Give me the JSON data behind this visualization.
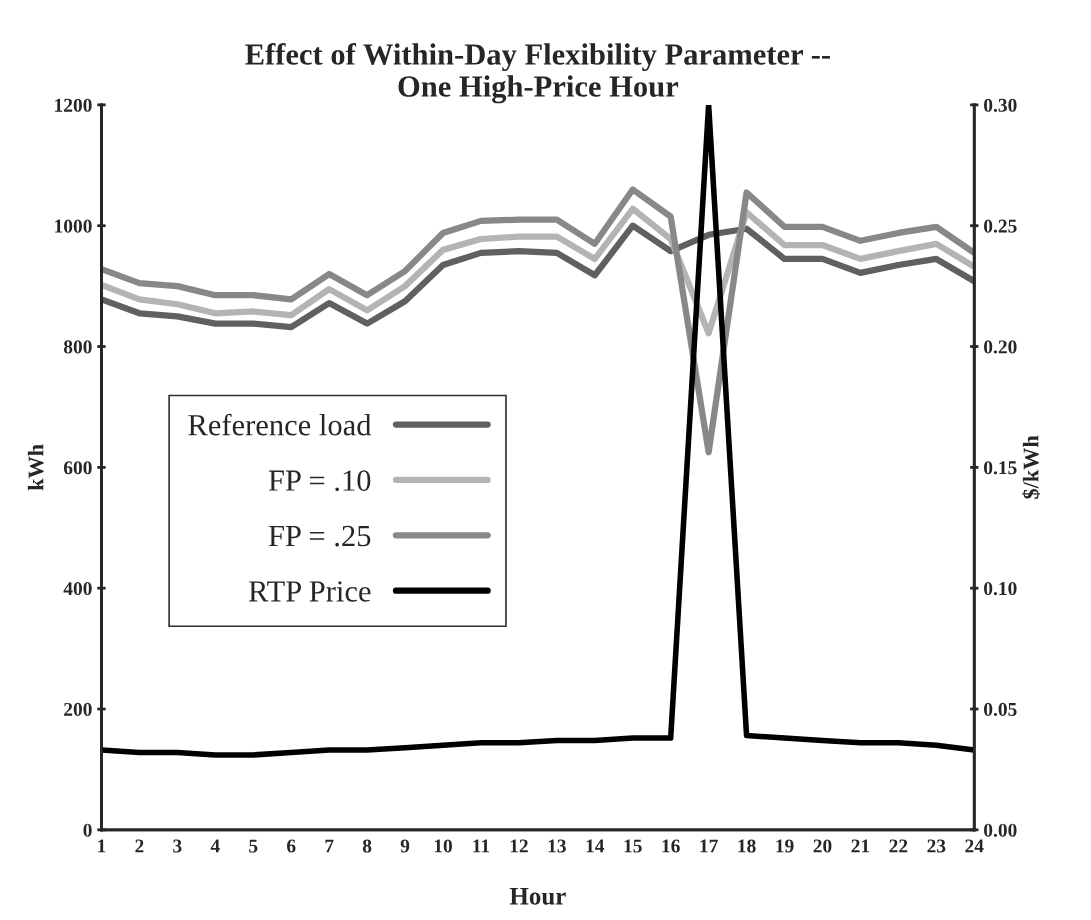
{
  "chart_data": {
    "type": "line",
    "title": "Effect of Within-Day Flexibility Parameter --\nOne High-Price Hour",
    "xlabel": "Hour",
    "ylabel": "kWh",
    "y2label": "$/kWh",
    "categories": [
      "1",
      "2",
      "3",
      "4",
      "5",
      "6",
      "7",
      "8",
      "9",
      "10",
      "11",
      "12",
      "13",
      "14",
      "15",
      "16",
      "17",
      "18",
      "19",
      "20",
      "21",
      "22",
      "23",
      "24"
    ],
    "series": [
      {
        "name": "Reference load",
        "color": "#606060",
        "values": [
          878,
          855,
          850,
          838,
          838,
          832,
          872,
          838,
          875,
          935,
          955,
          958,
          955,
          918,
          1000,
          958,
          985,
          995,
          945,
          945,
          922,
          935,
          945,
          908
        ]
      },
      {
        "name": "FP = .10",
        "color": "#b4b4b4",
        "values": [
          902,
          878,
          870,
          855,
          858,
          852,
          895,
          860,
          900,
          960,
          978,
          982,
          982,
          945,
          1028,
          978,
          822,
          1022,
          968,
          968,
          945,
          958,
          970,
          932
        ]
      },
      {
        "name": "FP = .25",
        "color": "#888888",
        "values": [
          928,
          905,
          900,
          885,
          885,
          878,
          920,
          885,
          925,
          988,
          1008,
          1010,
          1010,
          970,
          1060,
          1015,
          625,
          1055,
          998,
          998,
          975,
          988,
          998,
          955
        ]
      },
      {
        "name": "RTP Price",
        "color": "#000000",
        "axis": "y2",
        "values": [
          0.033,
          0.032,
          0.032,
          0.031,
          0.031,
          0.032,
          0.033,
          0.033,
          0.034,
          0.035,
          0.036,
          0.036,
          0.037,
          0.037,
          0.038,
          0.038,
          0.3,
          0.039,
          0.038,
          0.037,
          0.036,
          0.036,
          0.035,
          0.033
        ]
      }
    ],
    "ylim": [
      0,
      1200
    ],
    "yticks": [
      0,
      200,
      400,
      600,
      800,
      1000,
      1200
    ],
    "y2lim": [
      0,
      0.3
    ],
    "y2ticks": [
      {
        "value": 0,
        "label": "0.00"
      },
      {
        "value": 0.05,
        "label": "0.05"
      },
      {
        "value": 0.1,
        "label": "0.10"
      },
      {
        "value": 0.15,
        "label": "0.15"
      },
      {
        "value": 0.2,
        "label": "0.20"
      },
      {
        "value": 0.25,
        "label": "0.25"
      },
      {
        "value": 0.3,
        "label": "0.30"
      }
    ],
    "legend": "left",
    "grid": false,
    "marker": "none",
    "line_style": "solid"
  }
}
